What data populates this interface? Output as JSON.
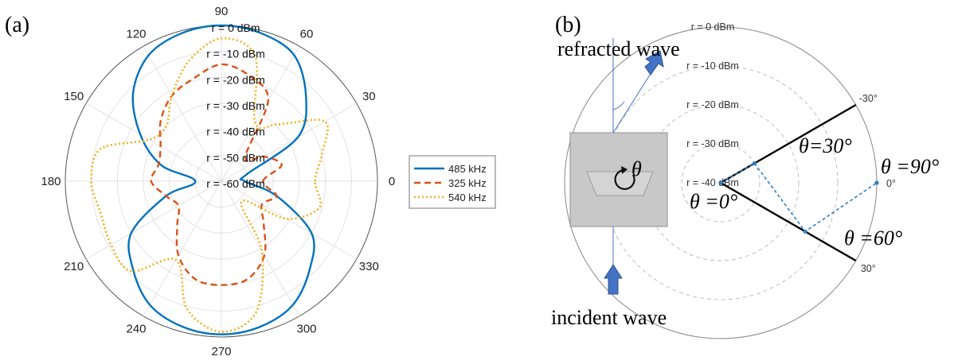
{
  "chart_data": [
    {
      "type": "line",
      "subtype": "polar",
      "panel_label": "(a)",
      "theta_ticks": [
        "0",
        "30",
        "60",
        "90",
        "120",
        "150",
        "180",
        "210",
        "240",
        "270",
        "300",
        "330"
      ],
      "r_labels": [
        "r = 0 dBm",
        "r = -10 dBm",
        "r = -20 dBm",
        "r = -30 dBm",
        "r = -40 dBm",
        "r = -50 dBm",
        "r = -60 dBm"
      ],
      "rlim": [
        -60,
        0
      ],
      "grid": true,
      "legend_position": "right",
      "theta_deg": [
        0,
        15,
        30,
        45,
        60,
        75,
        90,
        105,
        120,
        135,
        150,
        165,
        180,
        195,
        210,
        225,
        240,
        255,
        270,
        285,
        300,
        315,
        330,
        345
      ],
      "series": [
        {
          "name": "485 kHz",
          "color": "#0072BD",
          "style": "solid",
          "values": [
            -51,
            -50,
            -26,
            -14,
            -4,
            -1,
            0,
            -1,
            -4,
            -12,
            -24,
            -36,
            -50,
            -38,
            -20,
            -12,
            -5,
            -2,
            -1,
            -2,
            -5,
            -12,
            -20,
            -38
          ]
        },
        {
          "name": "325 kHz",
          "color": "#D95319",
          "style": "dashed",
          "values": [
            -44,
            -36,
            -41,
            -47,
            -24,
            -18,
            -15,
            -19,
            -22,
            -27,
            -33,
            -35,
            -33,
            -38,
            -41,
            -36,
            -27,
            -21,
            -20,
            -21,
            -27,
            -37,
            -42,
            -38
          ]
        },
        {
          "name": "540 kHz",
          "color": "#EDB120",
          "style": "dotted",
          "values": [
            -24,
            -20,
            -14,
            -29,
            -34,
            -10,
            -5,
            -12,
            -22,
            -30,
            -28,
            -12,
            -10,
            -12,
            -11,
            -11,
            -25,
            -9,
            -2,
            -8,
            -29,
            -49,
            -31,
            -21
          ]
        }
      ]
    },
    {
      "type": "scatter",
      "subtype": "polar",
      "panel_label": "(b)",
      "theta_ticks": [
        "-30°",
        "0°",
        "30°"
      ],
      "r_labels": [
        "r = 0 dBm",
        "r = -10 dBm",
        "r = -20 dBm",
        "r = -30 dBm",
        "r = -40 dBm"
      ],
      "rlim": [
        -40,
        0
      ],
      "points": [
        {
          "label": "θ =0°",
          "theta_deg": 0,
          "r": -40
        },
        {
          "label": "θ=30°",
          "theta_deg": -30,
          "r": -30
        },
        {
          "label": "θ =60°",
          "theta_deg": 30,
          "r": -15
        },
        {
          "label": "θ =90°",
          "theta_deg": 0,
          "r": 0
        }
      ]
    }
  ],
  "diagram": {
    "refracted_label": "refracted wave",
    "incident_label": "incident wave",
    "rotation_symbol": "θ"
  }
}
